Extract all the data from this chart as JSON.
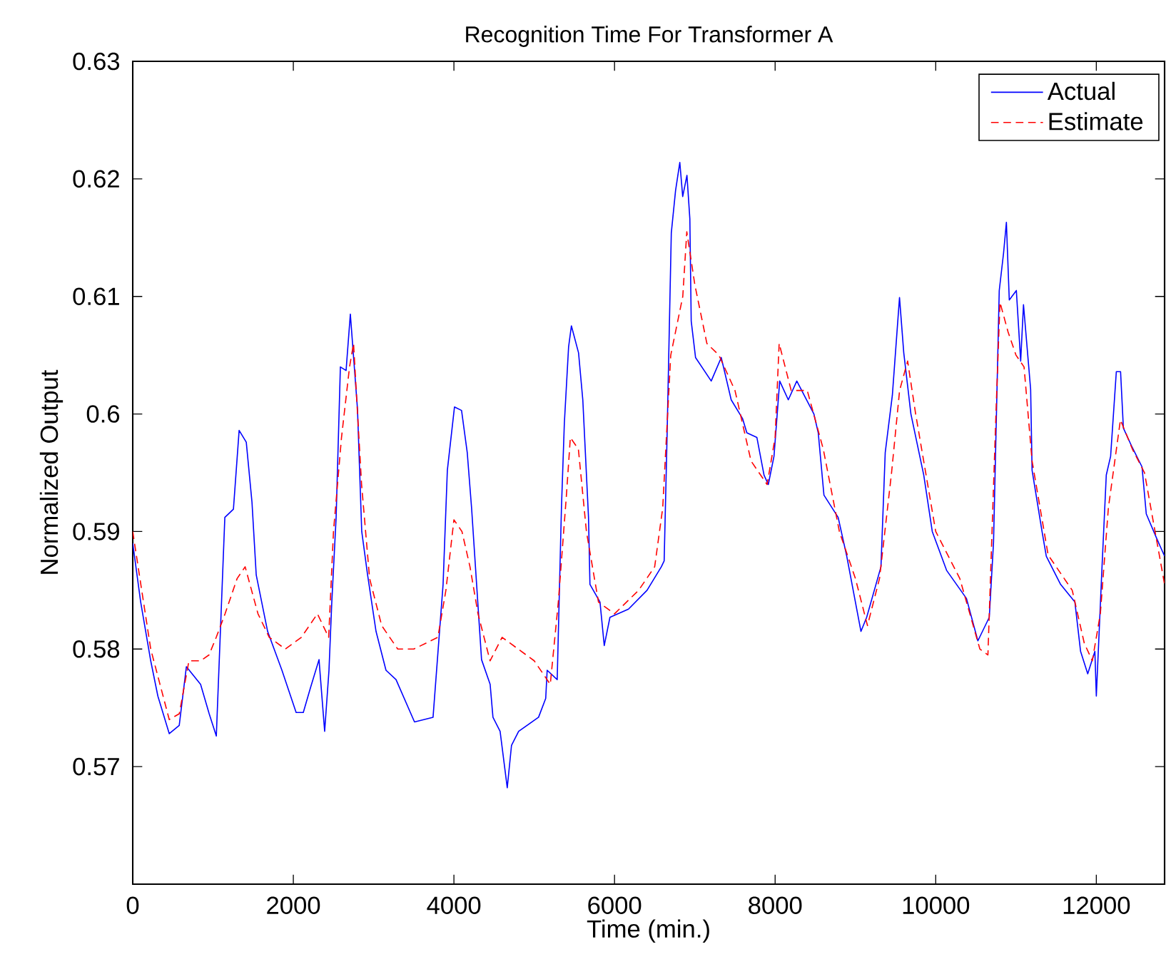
{
  "chart_data": {
    "type": "line",
    "title": "Recognition Time For Transformer A",
    "xlabel": "Time (min.)",
    "ylabel": "Normalized Output",
    "xlim": [
      0,
      12850
    ],
    "xticks": [
      0,
      2000,
      4000,
      6000,
      8000,
      10000,
      12000
    ],
    "ylim": [
      0.56,
      0.63
    ],
    "yticks": [
      0.57,
      0.58,
      0.59,
      0.6,
      0.61,
      0.62,
      0.63
    ],
    "grid": false,
    "legend": "top right",
    "marker": "none",
    "series": [
      {
        "name": "Actual",
        "color": "#0000ff",
        "line_style": "solid",
        "x": [
          0,
          99,
          224,
          313,
          455,
          579,
          668,
          845,
          952,
          1041,
          1147,
          1254,
          1325,
          1414,
          1485,
          1538,
          1680,
          1858,
          2035,
          2124,
          2213,
          2320,
          2390,
          2444,
          2479,
          2533,
          2586,
          2657,
          2710,
          2799,
          2852,
          2923,
          3030,
          3154,
          3279,
          3509,
          3740,
          3865,
          3918,
          4007,
          4095,
          4166,
          4220,
          4344,
          4451,
          4486,
          4575,
          4664,
          4717,
          4806,
          5054,
          5143,
          5161,
          5286,
          5339,
          5375,
          5428,
          5463,
          5552,
          5605,
          5676,
          5694,
          5819,
          5872,
          5943,
          6174,
          6405,
          6583,
          6618,
          6654,
          6707,
          6760,
          6813,
          6849,
          6902,
          6938,
          6955,
          7009,
          7204,
          7329,
          7453,
          7595,
          7648,
          7773,
          7862,
          7915,
          7986,
          8057,
          8164,
          8270,
          8483,
          8537,
          8608,
          8785,
          8892,
          9069,
          9140,
          9318,
          9371,
          9460,
          9549,
          9602,
          9691,
          9851,
          9957,
          10135,
          10383,
          10525,
          10667,
          10720,
          10791,
          10845,
          10880,
          10916,
          11004,
          11058,
          11093,
          11182,
          11200,
          11324,
          11377,
          11555,
          11733,
          11804,
          11893,
          11982,
          12000,
          12071,
          12124,
          12178,
          12249,
          12302,
          12337,
          12444,
          12569,
          12622,
          12746,
          12850
        ],
        "values": [
          0.589,
          0.584,
          0.579,
          0.576,
          0.5728,
          0.5735,
          0.5785,
          0.577,
          0.5745,
          0.5726,
          0.5912,
          0.5919,
          0.5986,
          0.5976,
          0.5925,
          0.5863,
          0.5815,
          0.5782,
          0.5746,
          0.5746,
          0.5767,
          0.5791,
          0.573,
          0.5782,
          0.584,
          0.5912,
          0.604,
          0.6037,
          0.6085,
          0.6004,
          0.59,
          0.5864,
          0.5815,
          0.5782,
          0.5774,
          0.5738,
          0.5742,
          0.5855,
          0.5952,
          0.6006,
          0.6003,
          0.5967,
          0.592,
          0.5791,
          0.577,
          0.5742,
          0.573,
          0.5682,
          0.5718,
          0.573,
          0.5742,
          0.5758,
          0.5782,
          0.5774,
          0.592,
          0.5992,
          0.6057,
          0.6075,
          0.6052,
          0.6012,
          0.5912,
          0.5855,
          0.584,
          0.5803,
          0.5827,
          0.5834,
          0.585,
          0.587,
          0.5875,
          0.598,
          0.6154,
          0.619,
          0.6214,
          0.6185,
          0.6203,
          0.6166,
          0.6079,
          0.6048,
          0.6028,
          0.6048,
          0.6012,
          0.5996,
          0.5984,
          0.598,
          0.5948,
          0.594,
          0.5964,
          0.6028,
          0.6012,
          0.6028,
          0.6,
          0.5984,
          0.5931,
          0.5912,
          0.5879,
          0.5815,
          0.5827,
          0.587,
          0.5967,
          0.6016,
          0.6099,
          0.6052,
          0.6,
          0.5948,
          0.59,
          0.5867,
          0.5843,
          0.5807,
          0.5827,
          0.5891,
          0.6105,
          0.6137,
          0.6163,
          0.6097,
          0.6105,
          0.6045,
          0.6093,
          0.6021,
          0.5952,
          0.59,
          0.5879,
          0.5855,
          0.584,
          0.5798,
          0.5779,
          0.5798,
          0.576,
          0.587,
          0.5948,
          0.5964,
          0.6036,
          0.6036,
          0.5988,
          0.5972,
          0.5955,
          0.5915,
          0.5895,
          0.5879
        ]
      },
      {
        "name": "Estimate",
        "color": "#ff0000",
        "line_style": "dashed",
        "x": [
          0,
          224,
          455,
          580,
          700,
          845,
          950,
          1040,
          1150,
          1300,
          1400,
          1480,
          1560,
          1700,
          1900,
          2100,
          2300,
          2440,
          2500,
          2600,
          2700,
          2750,
          2850,
          2950,
          3100,
          3300,
          3500,
          3800,
          3900,
          4000,
          4100,
          4200,
          4300,
          4450,
          4600,
          4800,
          5000,
          5200,
          5300,
          5400,
          5450,
          5550,
          5650,
          5800,
          6000,
          6300,
          6500,
          6600,
          6700,
          6850,
          6900,
          7000,
          7150,
          7300,
          7500,
          7700,
          7900,
          8000,
          8050,
          8200,
          8400,
          8600,
          8800,
          9000,
          9150,
          9300,
          9450,
          9550,
          9650,
          9750,
          10000,
          10300,
          10550,
          10650,
          10750,
          10800,
          10900,
          11000,
          11100,
          11200,
          11400,
          11700,
          11850,
          11950,
          12050,
          12150,
          12300,
          12450,
          12600,
          12850
        ],
        "values": [
          0.59,
          0.58,
          0.574,
          0.5745,
          0.579,
          0.579,
          0.5795,
          0.581,
          0.583,
          0.586,
          0.587,
          0.585,
          0.583,
          0.581,
          0.58,
          0.581,
          0.583,
          0.581,
          0.59,
          0.598,
          0.604,
          0.606,
          0.594,
          0.586,
          0.582,
          0.58,
          0.58,
          0.581,
          0.585,
          0.591,
          0.59,
          0.587,
          0.583,
          0.579,
          0.581,
          0.58,
          0.579,
          0.577,
          0.584,
          0.593,
          0.598,
          0.597,
          0.59,
          0.584,
          0.583,
          0.585,
          0.587,
          0.592,
          0.605,
          0.61,
          0.6155,
          0.611,
          0.606,
          0.605,
          0.602,
          0.596,
          0.594,
          0.598,
          0.606,
          0.602,
          0.602,
          0.597,
          0.59,
          0.586,
          0.582,
          0.586,
          0.595,
          0.602,
          0.6045,
          0.6,
          0.59,
          0.586,
          0.58,
          0.5795,
          0.6,
          0.6095,
          0.607,
          0.605,
          0.604,
          0.596,
          0.588,
          0.585,
          0.5805,
          0.579,
          0.583,
          0.592,
          0.5995,
          0.597,
          0.595,
          0.5855
        ]
      }
    ]
  }
}
